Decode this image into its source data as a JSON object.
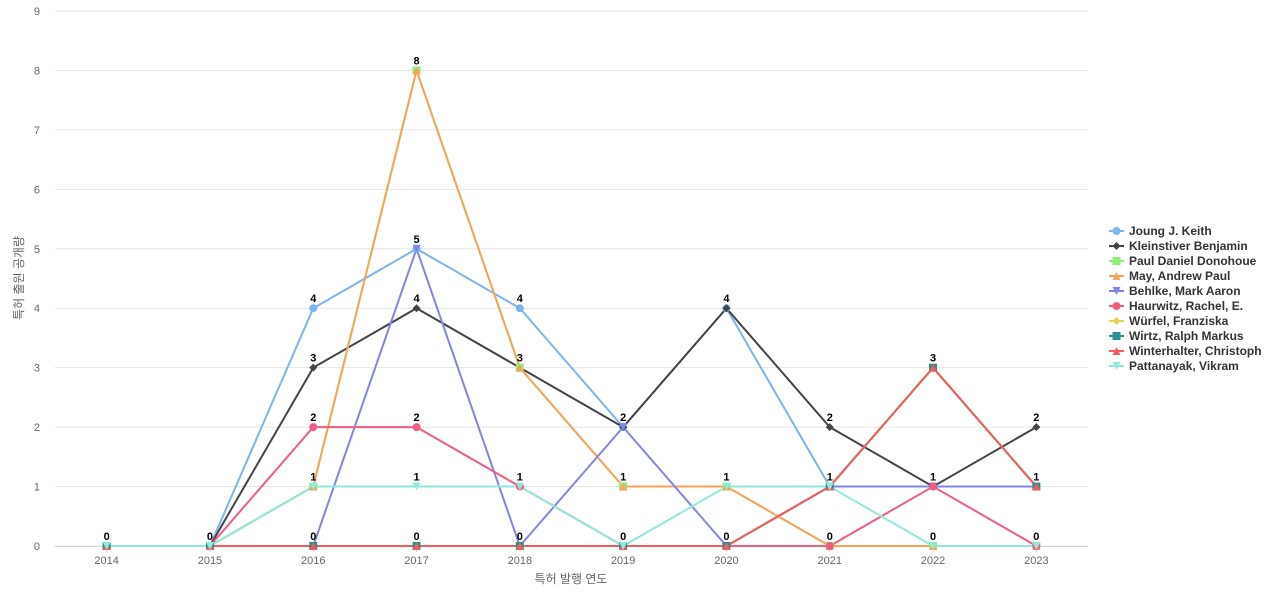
{
  "chart_data": {
    "type": "line",
    "xlabel": "특허 발행 연도",
    "ylabel": "특허 출원 공개량",
    "ylim": [
      0,
      9
    ],
    "yticks": [
      0,
      1,
      2,
      3,
      4,
      5,
      6,
      7,
      8,
      9
    ],
    "categories": [
      "2014",
      "2015",
      "2016",
      "2017",
      "2018",
      "2019",
      "2020",
      "2021",
      "2022",
      "2023"
    ],
    "grid": "horizontal",
    "legend_position": "right",
    "series": [
      {
        "name": "Joung J. Keith",
        "color": "#7cb5ec",
        "marker": "circle",
        "values": [
          0,
          0,
          4,
          5,
          4,
          2,
          4,
          1,
          1,
          1
        ]
      },
      {
        "name": "Kleinstiver Benjamin",
        "color": "#434348",
        "marker": "diamond",
        "values": [
          0,
          0,
          3,
          4,
          3,
          2,
          4,
          2,
          1,
          2
        ]
      },
      {
        "name": "Paul Daniel Donohoue",
        "color": "#90ed7d",
        "marker": "square",
        "values": [
          0,
          0,
          1,
          8,
          3,
          1,
          1,
          0,
          0,
          0
        ]
      },
      {
        "name": "May, Andrew Paul",
        "color": "#f7a35c",
        "marker": "triangle",
        "values": [
          0,
          0,
          1,
          8,
          3,
          1,
          1,
          0,
          0,
          0
        ]
      },
      {
        "name": "Behlke, Mark Aaron",
        "color": "#8085e9",
        "marker": "triangle-down",
        "values": [
          0,
          0,
          0,
          5,
          0,
          2,
          0,
          1,
          1,
          1
        ]
      },
      {
        "name": "Haurwitz, Rachel, E.",
        "color": "#f15c80",
        "marker": "circle",
        "values": [
          0,
          0,
          2,
          2,
          1,
          0,
          0,
          0,
          1,
          0
        ]
      },
      {
        "name": "Würfel, Franziska",
        "color": "#e4d354",
        "marker": "diamond",
        "values": [
          0,
          0,
          0,
          0,
          0,
          0,
          0,
          1,
          3,
          1
        ]
      },
      {
        "name": "Wirtz, Ralph Markus",
        "color": "#2b908f",
        "marker": "square",
        "values": [
          0,
          0,
          0,
          0,
          0,
          0,
          0,
          1,
          3,
          1
        ]
      },
      {
        "name": "Winterhalter, Christoph",
        "color": "#f45b5b",
        "marker": "triangle",
        "values": [
          0,
          0,
          0,
          0,
          0,
          0,
          0,
          1,
          3,
          1
        ]
      },
      {
        "name": "Pattanayak, Vikram",
        "color": "#91e8e1",
        "marker": "triangle-down",
        "values": [
          0,
          0,
          1,
          1,
          1,
          0,
          1,
          1,
          0,
          0
        ]
      }
    ],
    "data_labels": [
      {
        "x": "2014",
        "value": 0
      },
      {
        "x": "2015",
        "value": 0
      },
      {
        "x": "2016",
        "value": 4
      },
      {
        "x": "2016",
        "value": 3
      },
      {
        "x": "2016",
        "value": 2
      },
      {
        "x": "2016",
        "value": 1
      },
      {
        "x": "2016",
        "value": 0
      },
      {
        "x": "2017",
        "value": 8
      },
      {
        "x": "2017",
        "value": 5
      },
      {
        "x": "2017",
        "value": 4
      },
      {
        "x": "2017",
        "value": 2
      },
      {
        "x": "2017",
        "value": 1
      },
      {
        "x": "2017",
        "value": 0
      },
      {
        "x": "2018",
        "value": 4
      },
      {
        "x": "2018",
        "value": 3
      },
      {
        "x": "2018",
        "value": 1
      },
      {
        "x": "2018",
        "value": 0
      },
      {
        "x": "2019",
        "value": 2
      },
      {
        "x": "2019",
        "value": 1
      },
      {
        "x": "2019",
        "value": 0
      },
      {
        "x": "2020",
        "value": 4
      },
      {
        "x": "2020",
        "value": 1
      },
      {
        "x": "2020",
        "value": 0
      },
      {
        "x": "2021",
        "value": 2
      },
      {
        "x": "2021",
        "value": 1
      },
      {
        "x": "2021",
        "value": 0
      },
      {
        "x": "2022",
        "value": 3
      },
      {
        "x": "2022",
        "value": 1
      },
      {
        "x": "2022",
        "value": 0
      },
      {
        "x": "2023",
        "value": 2
      },
      {
        "x": "2023",
        "value": 1
      },
      {
        "x": "2023",
        "value": 0
      }
    ]
  }
}
